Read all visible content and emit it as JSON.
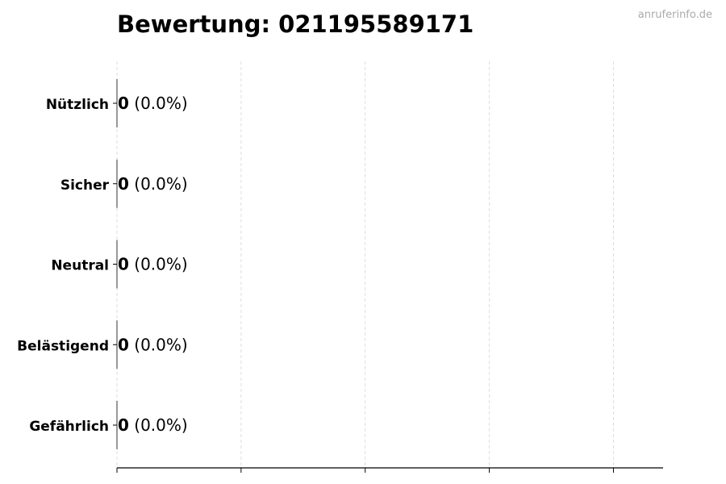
{
  "watermark": "anruferinfo.de",
  "chart_data": {
    "type": "bar",
    "orientation": "horizontal",
    "title": "Bewertung: 021195589171",
    "categories": [
      "Nützlich",
      "Sicher",
      "Neutral",
      "Belästigend",
      "Gefährlich"
    ],
    "values": [
      0,
      0,
      0,
      0,
      0
    ],
    "percentages": [
      "0.0%",
      "0.0%",
      "0.0%",
      "0.0%",
      "0.0%"
    ],
    "data_labels": [
      "0",
      "0",
      "0",
      "0",
      "0"
    ],
    "xlabel": "",
    "ylabel": "",
    "xlim": [
      0,
      4.4
    ],
    "grid": "vertical dashed",
    "colors": {
      "grid": "#dddddd",
      "axis": "#000000",
      "watermark": "#aaaaaa"
    }
  }
}
